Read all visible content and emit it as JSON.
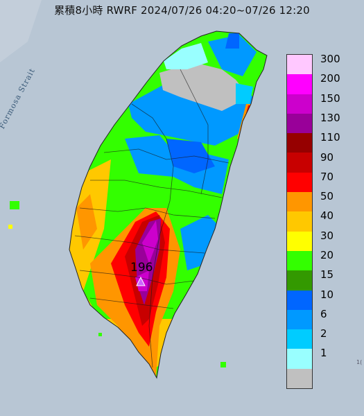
{
  "title": "累積8小時 RWRF 2024/07/26 04:20~07/26 12:20",
  "strait_label": "Formosa Strait",
  "max_value_label": "196",
  "edge_text": "1(",
  "legend": [
    {
      "label": "300",
      "color": "#ffc8ff"
    },
    {
      "label": "200",
      "color": "#ff00ff"
    },
    {
      "label": "150",
      "color": "#cc00cc"
    },
    {
      "label": "130",
      "color": "#990099"
    },
    {
      "label": "110",
      "color": "#960000"
    },
    {
      "label": "90",
      "color": "#c80000"
    },
    {
      "label": "70",
      "color": "#ff0000"
    },
    {
      "label": "50",
      "color": "#ff9600"
    },
    {
      "label": "40",
      "color": "#ffc800"
    },
    {
      "label": "30",
      "color": "#ffff00"
    },
    {
      "label": "20",
      "color": "#33ff00"
    },
    {
      "label": "15",
      "color": "#339900"
    },
    {
      "label": "10",
      "color": "#0066ff"
    },
    {
      "label": "6",
      "color": "#0099ff"
    },
    {
      "label": "2",
      "color": "#00ccff"
    },
    {
      "label": "1",
      "color": "#99ffff"
    },
    {
      "label": "",
      "color": "#c0c0c0"
    }
  ],
  "colors": {
    "sea": "#b8c6d4",
    "no_data": "#c0c0c0",
    "max_marker": "#cc66ff"
  }
}
